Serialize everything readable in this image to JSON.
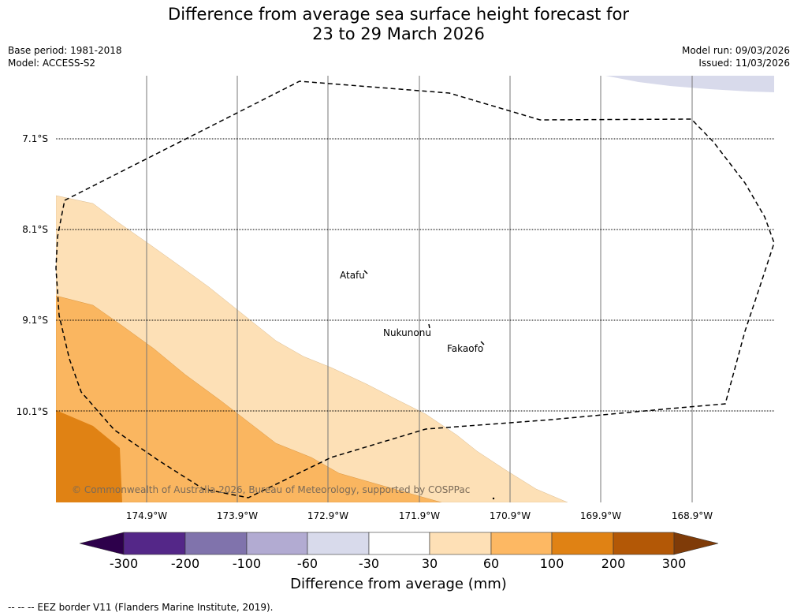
{
  "title_line1": "Difference from average sea surface height forecast for",
  "title_line2": "23 to 29 March 2026",
  "meta_left": {
    "base_period": "Base period: 1981-2018",
    "model": "Model: ACCESS-S2"
  },
  "meta_right": {
    "model_run": "Model run: 09/03/2026",
    "issued": "Issued: 11/03/2026"
  },
  "map": {
    "lat_labels": [
      "7.1°S",
      "8.1°S",
      "9.1°S",
      "10.1°S"
    ],
    "lon_labels": [
      "174.9°W",
      "173.9°W",
      "172.9°W",
      "171.9°W",
      "170.9°W",
      "169.9°W",
      "168.9°W"
    ],
    "places": {
      "atafu": "Atafu",
      "nukunonu": "Nukunonu",
      "fakaofo": "Fakaofo"
    },
    "copyright": "© Commonwealth of Australia 2026, Bureau of Meteorology, supported by COSPPac",
    "colors": {
      "band_30_60": "#fde0b6",
      "band_60_100": "#fab660",
      "band_100_200": "#e08214",
      "band_neg30_neg60": "#d8daeb"
    }
  },
  "colorbar": {
    "ticks": [
      "-300",
      "-200",
      "-100",
      "-60",
      "-30",
      "30",
      "60",
      "100",
      "200",
      "300"
    ],
    "label": "Difference from average (mm)",
    "colors": [
      "#2d004b",
      "#542788",
      "#8073ac",
      "#b2abd2",
      "#d8daeb",
      "#ffffff",
      "#fee0b6",
      "#fdb863",
      "#e08214",
      "#b35806",
      "#7f3b08"
    ]
  },
  "footer": "--  --  -- EEZ border V11 (Flanders Marine Institute, 2019)."
}
